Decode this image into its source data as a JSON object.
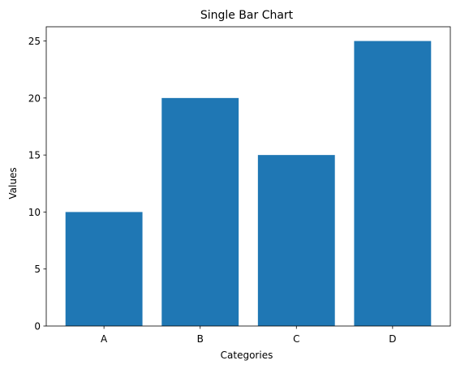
{
  "chart_data": {
    "type": "bar",
    "title": "Single Bar Chart",
    "xlabel": "Categories",
    "ylabel": "Values",
    "categories": [
      "A",
      "B",
      "C",
      "D"
    ],
    "values": [
      10,
      20,
      15,
      25
    ],
    "ylim": [
      0,
      26.25
    ],
    "yticks": [
      0,
      5,
      10,
      15,
      20,
      25
    ],
    "grid": false,
    "bar_color": "#1f77b4"
  }
}
